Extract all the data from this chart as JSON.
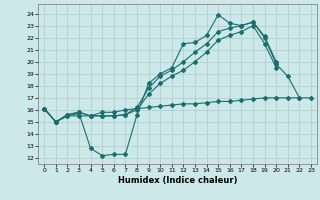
{
  "xlabel": "Humidex (Indice chaleur)",
  "background_color": "#cce8e8",
  "grid_color": "#aacccc",
  "line_color": "#1a6e6e",
  "xlim": [
    -0.5,
    23.5
  ],
  "ylim": [
    11.5,
    24.8
  ],
  "yticks": [
    12,
    13,
    14,
    15,
    16,
    17,
    18,
    19,
    20,
    21,
    22,
    23,
    24
  ],
  "xticks": [
    0,
    1,
    2,
    3,
    4,
    5,
    6,
    7,
    8,
    9,
    10,
    11,
    12,
    13,
    14,
    15,
    16,
    17,
    18,
    19,
    20,
    21,
    22,
    23
  ],
  "line1_x": [
    0,
    1,
    2,
    3,
    4,
    5,
    6,
    7,
    8,
    9,
    10,
    11,
    12,
    13,
    14,
    15,
    16,
    17,
    18,
    19,
    20,
    21,
    22
  ],
  "line1_y": [
    16.1,
    15.0,
    15.5,
    15.7,
    12.8,
    12.2,
    12.3,
    12.3,
    15.6,
    18.2,
    19.0,
    19.5,
    21.5,
    21.6,
    22.2,
    23.9,
    23.2,
    23.0,
    23.3,
    22.0,
    19.8,
    18.8,
    17.0
  ],
  "line2_x": [
    0,
    1,
    2,
    3,
    4,
    5,
    6,
    7,
    8,
    9,
    10,
    11,
    12,
    13,
    14,
    15,
    16,
    17,
    18,
    19,
    20,
    21,
    22,
    23
  ],
  "line2_y": [
    16.1,
    15.0,
    15.6,
    15.8,
    15.5,
    15.5,
    15.5,
    15.6,
    16.2,
    17.8,
    18.8,
    19.3,
    20.0,
    20.8,
    21.5,
    22.5,
    22.8,
    23.0,
    23.3,
    22.1,
    20.0,
    null,
    null,
    null
  ],
  "line3_x": [
    0,
    1,
    2,
    3,
    4,
    5,
    6,
    7,
    8,
    9,
    10,
    11,
    12,
    13,
    14,
    15,
    16,
    17,
    18,
    19,
    20,
    21,
    22,
    23
  ],
  "line3_y": [
    16.1,
    15.0,
    15.6,
    15.8,
    15.5,
    15.5,
    15.5,
    15.6,
    16.0,
    17.3,
    18.2,
    18.8,
    19.3,
    20.0,
    20.8,
    21.8,
    22.2,
    22.5,
    23.0,
    21.5,
    19.5,
    null,
    null,
    null
  ],
  "line4_x": [
    0,
    1,
    2,
    3,
    4,
    5,
    6,
    7,
    8,
    9,
    10,
    11,
    12,
    13,
    14,
    15,
    16,
    17,
    18,
    19,
    20,
    21,
    22,
    23
  ],
  "line4_y": [
    16.1,
    15.0,
    15.5,
    15.5,
    15.5,
    15.8,
    15.8,
    16.0,
    16.1,
    16.2,
    16.3,
    16.4,
    16.5,
    16.5,
    16.6,
    16.7,
    16.7,
    16.8,
    16.9,
    17.0,
    17.0,
    17.0,
    17.0,
    17.0
  ]
}
